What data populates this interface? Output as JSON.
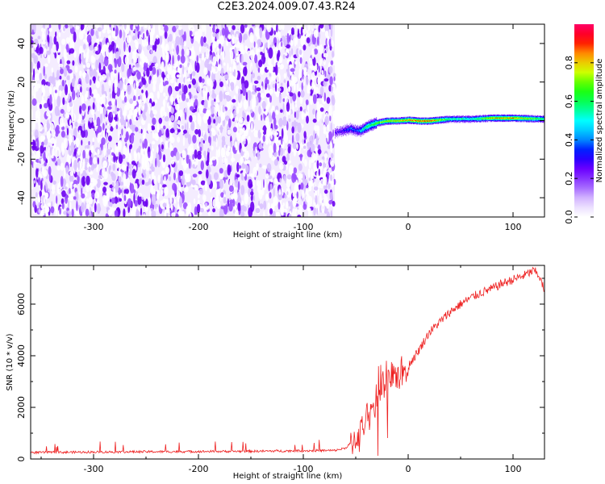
{
  "title": "C2E3.2024.009.07.43.R24",
  "colors": {
    "snr_line": "#ee2222",
    "colormap": [
      "#ffffff",
      "#e0cbff",
      "#9a55ff",
      "#6a00ff",
      "#0000ff",
      "#00aaff",
      "#00ffff",
      "#00ff66",
      "#22ff00",
      "#ccff00",
      "#ffaa00",
      "#ff0000",
      "#ff0066"
    ]
  },
  "chart_data": [
    {
      "type": "heatmap",
      "xlabel": "Height of straight line (km)",
      "ylabel": "Frequency (Hz)",
      "xlim": [
        -360,
        130
      ],
      "ylim": [
        -50,
        50
      ],
      "xticks": [
        -300,
        -200,
        -100,
        0,
        100
      ],
      "yticks": [
        -40,
        -20,
        0,
        20,
        40
      ],
      "noise_region_x": [
        -360,
        -70
      ],
      "signal_trace": {
        "x": [
          -70,
          -62,
          -55,
          -50,
          -45,
          -40,
          -35,
          -30,
          -20,
          -10,
          0,
          10,
          20,
          40,
          60,
          80,
          100,
          130
        ],
        "freq": [
          -6,
          -5,
          -4,
          -5,
          -5,
          -3,
          -2,
          -1,
          0,
          0,
          0.5,
          0,
          0,
          1,
          1,
          1.5,
          1.5,
          1
        ],
        "amplitude": [
          0.25,
          0.3,
          0.4,
          0.35,
          0.5,
          0.6,
          0.6,
          0.7,
          0.75,
          0.8,
          0.85,
          0.9,
          0.9,
          0.6,
          0.55,
          0.8,
          0.85,
          0.6
        ]
      },
      "colorbar": {
        "label": "Normalized spectral amplitude",
        "range": [
          0,
          1
        ],
        "ticks": [
          "0.0",
          "0.2",
          "0.4",
          "0.6",
          "0.8"
        ]
      }
    },
    {
      "type": "line",
      "xlabel": "Height of straight line (km)",
      "ylabel": "SNR (10 * v/v)",
      "xlim": [
        -360,
        130
      ],
      "ylim": [
        0,
        7500
      ],
      "xticks": [
        -300,
        -200,
        -100,
        0,
        100
      ],
      "yticks": [
        0,
        2000,
        4000,
        6000
      ],
      "series": [
        {
          "x": [
            -360,
            -300,
            -250,
            -200,
            -150,
            -100,
            -70,
            -60,
            -50,
            -40,
            -30,
            -20,
            -10,
            0,
            10,
            20,
            30,
            40,
            50,
            60,
            70,
            80,
            90,
            100,
            110,
            120,
            125,
            130
          ],
          "values": [
            250,
            270,
            280,
            290,
            300,
            320,
            330,
            420,
            800,
            1400,
            2200,
            3000,
            3300,
            3600,
            4200,
            4900,
            5300,
            5700,
            6000,
            6250,
            6450,
            6600,
            6800,
            6950,
            7100,
            7300,
            7100,
            6500
          ]
        }
      ]
    }
  ]
}
